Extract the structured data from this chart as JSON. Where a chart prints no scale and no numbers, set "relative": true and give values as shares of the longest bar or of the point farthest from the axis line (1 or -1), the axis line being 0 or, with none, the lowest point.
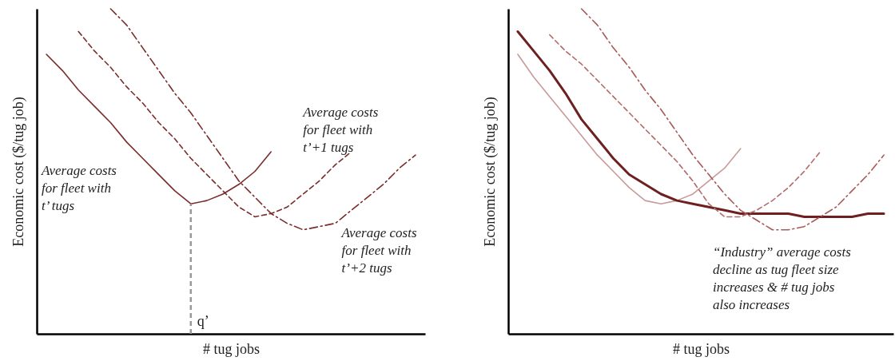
{
  "chart_data": [
    {
      "type": "line",
      "relative": true,
      "xlabel": "# tug jobs",
      "ylabel": "Economic cost ($/tug job)",
      "tick_labels": false,
      "categories": [
        null,
        null,
        null,
        null,
        null,
        null,
        null,
        null,
        null,
        null,
        null,
        null,
        null,
        null,
        null,
        null,
        null,
        null,
        null,
        null,
        null,
        null,
        null,
        null
      ],
      "annotations": [
        "q’"
      ],
      "series": [
        {
          "name": "Average costs for fleet with t’ tugs",
          "color": "#7b2c2c",
          "line_style": "solid",
          "values": [
            0.86,
            0.81,
            0.75,
            0.7,
            0.65,
            0.59,
            0.54,
            0.49,
            0.44,
            0.4,
            0.41,
            0.43,
            0.46,
            0.5,
            0.56,
            null,
            null,
            null,
            null,
            null,
            null,
            null,
            null,
            null
          ]
        },
        {
          "name": "Average costs for fleet with t’+1 tugs",
          "color": "#7b2c2c",
          "line_style": "dashed",
          "values": [
            null,
            null,
            0.93,
            0.87,
            0.82,
            0.76,
            0.71,
            0.65,
            0.6,
            0.54,
            0.49,
            0.44,
            0.39,
            0.36,
            0.37,
            0.39,
            0.43,
            0.47,
            0.52,
            0.56,
            null,
            null,
            null,
            null
          ]
        },
        {
          "name": "Average costs for fleet with t’+2 tugs",
          "color": "#7b2c2c",
          "line_style": "dashdot",
          "values": [
            null,
            null,
            null,
            null,
            1,
            0.95,
            0.88,
            0.81,
            0.74,
            0.68,
            0.61,
            0.54,
            0.47,
            0.42,
            0.37,
            0.34,
            0.32,
            0.33,
            0.34,
            0.38,
            0.42,
            0.46,
            0.51,
            0.55
          ]
        }
      ]
    },
    {
      "type": "line",
      "relative": true,
      "xlabel": "# tug jobs",
      "ylabel": "Economic cost ($/tug job)",
      "tick_labels": false,
      "categories": [
        null,
        null,
        null,
        null,
        null,
        null,
        null,
        null,
        null,
        null,
        null,
        null,
        null,
        null,
        null,
        null,
        null,
        null,
        null,
        null,
        null,
        null,
        null,
        null
      ],
      "annotations": [
        "“Industry” average costs decline as tug fleet size increases & # tug jobs also increases"
      ],
      "series": [
        {
          "color": "#c99a9a",
          "line_style": "solid",
          "values": [
            0.86,
            0.79,
            0.73,
            0.67,
            0.61,
            0.55,
            0.5,
            0.45,
            0.41,
            0.4,
            0.41,
            0.43,
            0.47,
            0.51,
            0.57,
            null,
            null,
            null,
            null,
            null,
            null,
            null,
            null,
            null
          ]
        },
        {
          "color": "#6e1f1f",
          "line_style": "solid",
          "values": [
            0.93,
            0.87,
            0.81,
            0.74,
            0.66,
            0.6,
            0.54,
            0.49,
            0.46,
            0.43,
            0.41,
            0.4,
            0.39,
            0.38,
            0.37,
            0.37,
            0.37,
            0.37,
            0.36,
            0.36,
            0.36,
            0.36,
            0.37,
            0.37
          ]
        },
        {
          "color": "#b36a6a",
          "line_style": "dashed",
          "values": [
            null,
            null,
            0.92,
            0.87,
            0.83,
            0.78,
            0.73,
            0.68,
            0.63,
            0.58,
            0.53,
            0.47,
            0.4,
            0.36,
            0.36,
            0.38,
            0.41,
            0.45,
            0.5,
            0.56,
            null,
            null,
            null,
            null
          ]
        },
        {
          "color": "#a85a5a",
          "line_style": "dashdot",
          "values": [
            null,
            null,
            null,
            null,
            1,
            0.95,
            0.88,
            0.82,
            0.75,
            0.69,
            0.62,
            0.55,
            0.49,
            0.43,
            0.38,
            0.35,
            0.32,
            0.32,
            0.33,
            0.36,
            0.39,
            0.44,
            0.49,
            0.55
          ]
        }
      ]
    }
  ]
}
